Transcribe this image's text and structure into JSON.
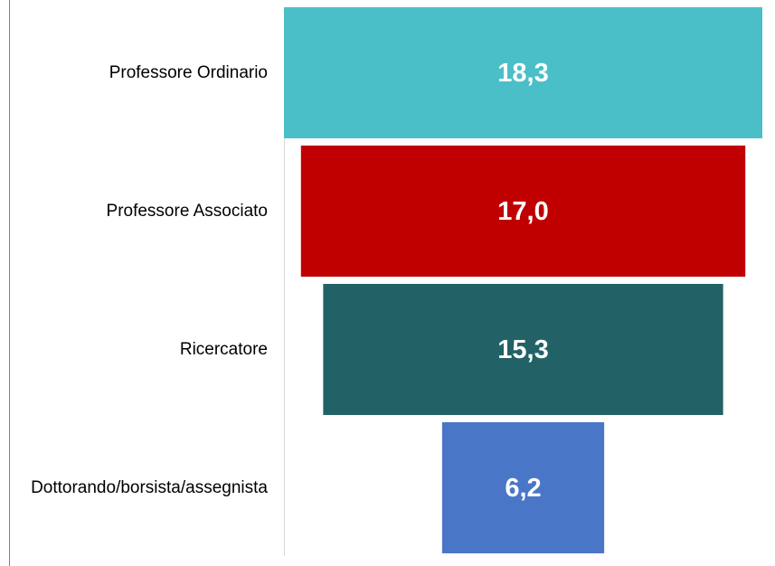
{
  "chart_data": {
    "type": "funnel",
    "categories": [
      "Professore Ordinario",
      "Professore Associato",
      "Ricercatore",
      "Dottorando/borsista/assegnista"
    ],
    "values": [
      18.3,
      17.0,
      15.3,
      6.2
    ],
    "value_labels": [
      "18,3",
      "17,0",
      "15,3",
      "6,2"
    ],
    "colors": [
      "#4bbfc8",
      "#c00000",
      "#226266",
      "#4a76c8"
    ]
  }
}
